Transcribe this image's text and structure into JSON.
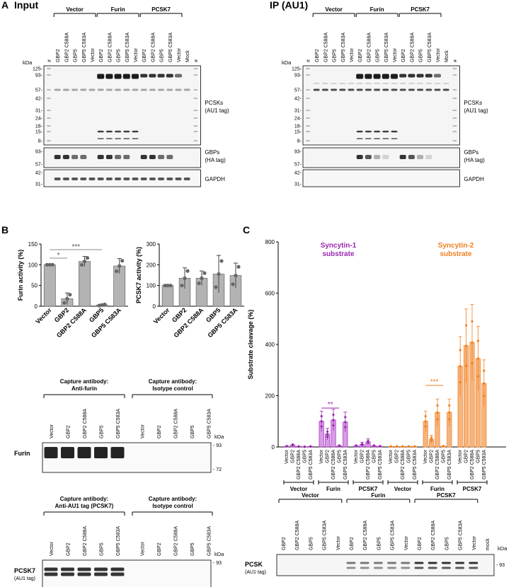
{
  "panel_letters": {
    "a": "A",
    "b": "B",
    "c": "C"
  },
  "panelA": {
    "input_title": "Input",
    "ip_title": "IP (AU1)",
    "groups": [
      "Vector",
      "Furin",
      "PCSK7"
    ],
    "lanes": [
      "#",
      "GBP2",
      "GBP2 C588A",
      "GBP5",
      "GBP5 C583A",
      "Vector",
      "GBP2",
      "GBP2 C588A",
      "GBP5",
      "GBP5 C583A",
      "Vector",
      "GBP2",
      "GBP2 C588A",
      "GBP5",
      "GBP5 C583A",
      "Vector",
      "Mock",
      "#"
    ],
    "kda_label": "kDa",
    "markers_top": [
      "125-",
      "93-",
      "57-",
      "42-",
      "31-",
      "24-",
      "18-",
      "15-",
      "8-"
    ],
    "markers_gbp": [
      "93-",
      "57-"
    ],
    "markers_gapdh": [
      "42-",
      "31-"
    ],
    "blot_labels": {
      "pcsks": "PCSKs",
      "pcsks_tag": "(AU1 tag)",
      "gbps": "GBPs",
      "gbps_tag": "(HA tag)",
      "gapdh": "GAPDH"
    }
  },
  "panelB": {
    "capture1_title_a": "Capture antibody:",
    "capture1_title_b": "Anti-furin",
    "capture2_title_a": "Capture antibody:",
    "capture2_title_b": "Isotype control",
    "capture3_title_a": "Capture antibody:",
    "capture3_title_b": "Anti-AU1 tag (PCSK7)",
    "capture4_title_a": "Capture antibody:",
    "capture4_title_b": "Isotype control",
    "lanes": [
      "Vector",
      "GBP2",
      "GBP2 C588A",
      "GBP5",
      "GBP5 C583A"
    ],
    "kda_label": "kDa",
    "furin_label": "Furin",
    "furin_markers": [
      "- 93",
      "- 72"
    ],
    "pcsk7_label": "PCSK7",
    "pcsk7_tag": "(AU1 tag)",
    "pcsk7_marker": "- 93"
  },
  "panelC": {
    "syncytin1_a": "Syncytin-1",
    "syncytin1_b": "substrate",
    "syncytin2_a": "Syncytin-2",
    "syncytin2_b": "substrate",
    "groups": [
      "Vector",
      "Furin",
      "PCSK7",
      "Vector",
      "Furin",
      "PCSK7"
    ],
    "blot_groups": [
      "Vector",
      "Furin",
      "PCSK7"
    ],
    "blot_lanes": [
      "GBP2",
      "GBP2 C588A",
      "GBP5",
      "GBP5 C583A",
      "Vector",
      "GBP2",
      "GBP2 C588A",
      "GBP5",
      "GBP5 C583A",
      "Vector",
      "GBP2",
      "GBP2 C588A",
      "GBP5",
      "GBP5 C583A",
      "Vector",
      "mock"
    ],
    "pcsk_label": "PCSK",
    "pcsk_tag": "(AU1 tag)",
    "kda_label": "kDa",
    "marker": "- 93",
    "sig1": "**",
    "sig2": "***"
  },
  "colors": {
    "purple": "#9b27b0",
    "purple_fill": "#d99be8",
    "orange": "#f07f1f",
    "orange_fill": "#f6b57e",
    "bar_gray": "#b3b3b3"
  },
  "chart_data": [
    {
      "type": "bar",
      "title": "",
      "categories": [
        "Vector",
        "GBP2",
        "GBP2 C588A",
        "GBP5",
        "GBP5 C583A"
      ],
      "values": [
        100,
        18,
        108,
        3,
        97
      ],
      "errors": [
        0,
        14,
        12,
        2,
        18
      ],
      "ylabel": "Furin activity (%)",
      "xlabel": "",
      "ylim": [
        0,
        150
      ],
      "yticks": [
        0,
        50,
        100,
        150
      ],
      "significance": [
        {
          "from": "Vector",
          "to": "GBP2",
          "label": "*"
        },
        {
          "from": "Vector",
          "to": "GBP5",
          "label": "***"
        }
      ]
    },
    {
      "type": "bar",
      "title": "",
      "categories": [
        "Vector",
        "GBP2",
        "GBP2 C588A",
        "GBP5",
        "GBP5 C583A"
      ],
      "values": [
        100,
        135,
        135,
        155,
        148
      ],
      "errors": [
        0,
        50,
        35,
        90,
        60
      ],
      "ylabel": "PCSK7 activity (%)",
      "xlabel": "",
      "ylim": [
        0,
        300
      ],
      "yticks": [
        0,
        100,
        200,
        300
      ]
    },
    {
      "type": "bar",
      "title": "",
      "ylabel": "Substrate cleavage (%)",
      "ylim": [
        0,
        800
      ],
      "yticks": [
        0,
        200,
        400,
        600,
        800
      ],
      "categories": [
        "Vector",
        "GBP2",
        "GBP2 C588A",
        "GBP5",
        "GBP5 C583A"
      ],
      "series": [
        {
          "name": "Syncytin-1 / Vector",
          "values": [
            3,
            8,
            2,
            1,
            2
          ]
        },
        {
          "name": "Syncytin-1 / Furin",
          "values": [
            100,
            50,
            105,
            5,
            97
          ]
        },
        {
          "name": "Syncytin-1 / PCSK7",
          "values": [
            5,
            10,
            20,
            5,
            3
          ]
        },
        {
          "name": "Syncytin-2 / Vector",
          "values": [
            2,
            2,
            2,
            2,
            2
          ]
        },
        {
          "name": "Syncytin-2 / Furin",
          "values": [
            100,
            30,
            135,
            3,
            135
          ]
        },
        {
          "name": "Syncytin-2 / PCSK7",
          "values": [
            315,
            395,
            408,
            345,
            248
          ]
        }
      ]
    }
  ]
}
